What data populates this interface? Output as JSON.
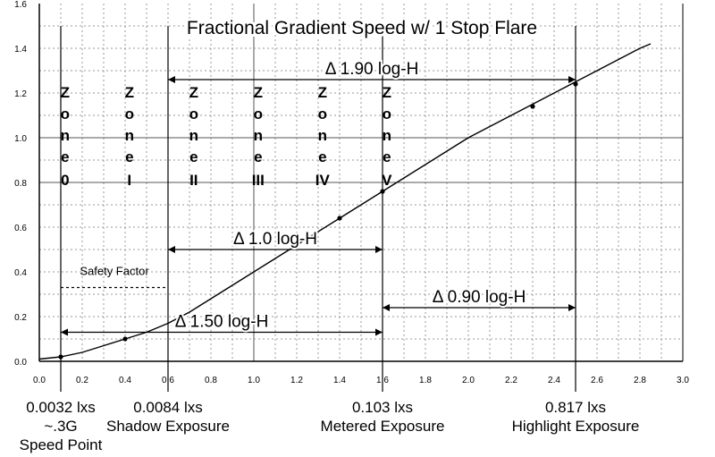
{
  "chart_data": {
    "type": "line",
    "title": "Fractional Gradient Speed w/ 1 Stop Flare",
    "xlabel": "",
    "ylabel": "",
    "xlim": [
      0.0,
      3.0
    ],
    "ylim": [
      0.0,
      1.6
    ],
    "x_ticks": [
      "0.0",
      "0.2",
      "0.4",
      "0.6",
      "0.8",
      "1.0",
      "1.2",
      "1.4",
      "1.6",
      "1.8",
      "2.0",
      "2.2",
      "2.4",
      "2.6",
      "2.8",
      "3.0"
    ],
    "y_ticks": [
      "0.0",
      "0.2",
      "0.4",
      "0.6",
      "0.8",
      "1.0",
      "1.2",
      "1.4",
      "1.6"
    ],
    "grid": true,
    "curve": {
      "x": [
        0.0,
        0.1,
        0.2,
        0.3,
        0.4,
        0.5,
        0.6,
        0.7,
        0.8,
        0.9,
        1.0,
        1.1,
        1.2,
        1.3,
        1.4,
        1.5,
        1.6,
        1.7,
        1.8,
        1.9,
        2.0,
        2.1,
        2.2,
        2.3,
        2.4,
        2.5,
        2.6,
        2.7,
        2.8,
        2.85
      ],
      "y": [
        0.01,
        0.02,
        0.04,
        0.07,
        0.1,
        0.13,
        0.17,
        0.22,
        0.28,
        0.34,
        0.4,
        0.46,
        0.52,
        0.58,
        0.64,
        0.7,
        0.76,
        0.82,
        0.88,
        0.94,
        1.0,
        1.05,
        1.1,
        1.15,
        1.2,
        1.25,
        1.3,
        1.35,
        1.4,
        1.42
      ]
    },
    "points": {
      "x": [
        0.1,
        0.4,
        1.4,
        1.6,
        2.3,
        2.5
      ],
      "y": [
        0.02,
        0.1,
        0.64,
        0.76,
        1.14,
        1.24
      ]
    },
    "vertical_lines_x": [
      0.1,
      0.6,
      1.6,
      2.5
    ],
    "zones": [
      {
        "letters": [
          "Z",
          "o",
          "n",
          "e"
        ],
        "numeral": "0",
        "x": 0.12
      },
      {
        "letters": [
          "Z",
          "o",
          "n",
          "e"
        ],
        "numeral": "I",
        "x": 0.42
      },
      {
        "letters": [
          "Z",
          "o",
          "n",
          "e"
        ],
        "numeral": "II",
        "x": 0.72
      },
      {
        "letters": [
          "Z",
          "o",
          "n",
          "e"
        ],
        "numeral": "III",
        "x": 1.02
      },
      {
        "letters": [
          "Z",
          "o",
          "n",
          "e"
        ],
        "numeral": "IV",
        "x": 1.32
      },
      {
        "letters": [
          "Z",
          "o",
          "n",
          "e"
        ],
        "numeral": "V",
        "x": 1.62
      }
    ],
    "ranges": [
      {
        "label": "Δ 1.90 log-H",
        "x1": 0.6,
        "x2": 2.5,
        "y": 1.26
      },
      {
        "label": "Δ 1.0 log-H",
        "x1": 0.6,
        "x2": 1.6,
        "y": 0.5
      },
      {
        "label": "Safety Factor",
        "x1": 0.1,
        "x2": 0.6,
        "y": 0.33
      },
      {
        "label": "Δ 0.90 log-H",
        "x1": 1.6,
        "x2": 2.5,
        "y": 0.24
      },
      {
        "label": "Δ 1.50 log-H",
        "x1": 0.1,
        "x2": 1.6,
        "y": 0.13
      }
    ],
    "bottom_labels": [
      {
        "lines": [
          "0.0032 lxs",
          "~.3G",
          "Speed Point"
        ],
        "x": 0.1
      },
      {
        "lines": [
          "0.0084 lxs",
          "Shadow Exposure"
        ],
        "x": 0.6
      },
      {
        "lines": [
          "0.103 lxs",
          "Metered Exposure"
        ],
        "x": 1.6
      },
      {
        "lines": [
          "0.817 lxs",
          "Highlight Exposure"
        ],
        "x": 2.5
      }
    ]
  }
}
